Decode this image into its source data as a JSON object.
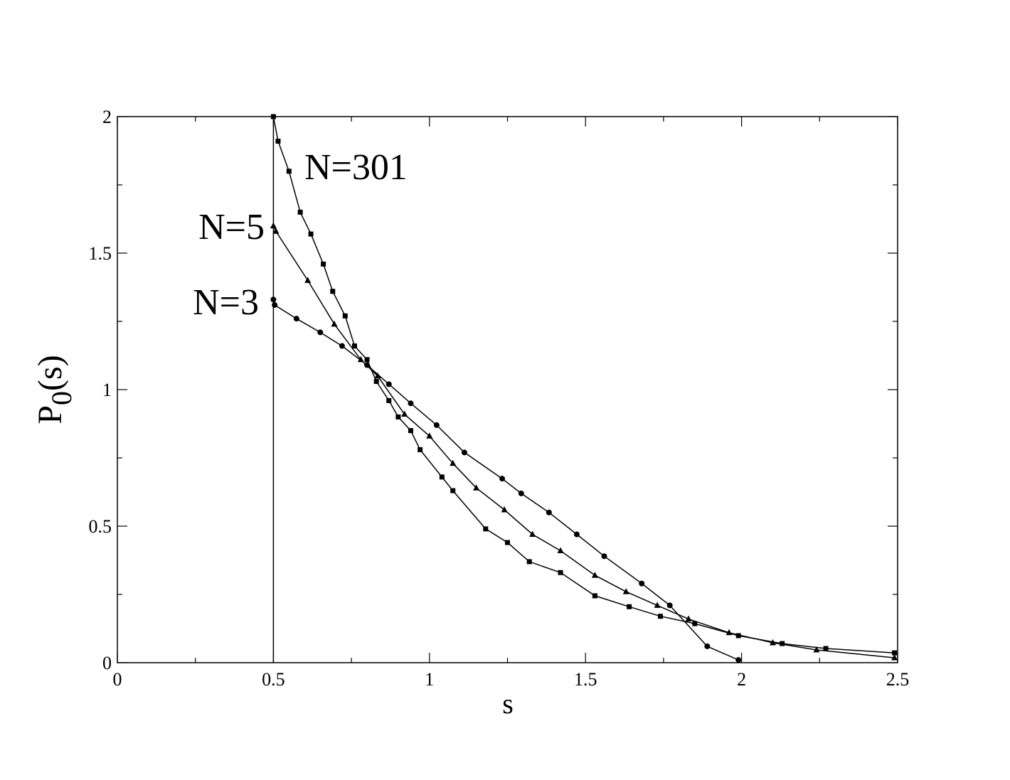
{
  "chart_data": {
    "type": "scatter",
    "xlabel": "s",
    "ylabel": [
      "P",
      "0",
      "(s)"
    ],
    "xlim": [
      0,
      2.5
    ],
    "ylim": [
      0,
      2
    ],
    "xticks": [
      0,
      0.5,
      1,
      1.5,
      2,
      2.5
    ],
    "yticks": [
      0,
      0.5,
      1,
      1.5,
      2
    ],
    "xminor": [
      0.25,
      0.75,
      1.25,
      1.75,
      2.25
    ],
    "yminor": [
      0.25,
      0.75,
      1.25,
      1.75
    ],
    "vline": 0.5,
    "series": [
      {
        "name": "N=301",
        "color": "#000000",
        "marker": "square",
        "x": [
          0.5,
          0.515,
          0.55,
          0.586,
          0.62,
          0.66,
          0.69,
          0.73,
          0.76,
          0.8,
          0.83,
          0.87,
          0.9,
          0.94,
          0.97,
          1.04,
          1.075,
          1.18,
          1.25,
          1.32,
          1.42,
          1.53,
          1.64,
          1.74,
          1.85,
          1.99,
          2.13,
          2.27,
          2.49
        ],
        "values": [
          2.0,
          1.91,
          1.8,
          1.65,
          1.57,
          1.46,
          1.36,
          1.27,
          1.16,
          1.11,
          1.03,
          0.96,
          0.9,
          0.85,
          0.78,
          0.68,
          0.63,
          0.49,
          0.44,
          0.37,
          0.33,
          0.245,
          0.205,
          0.17,
          0.143,
          0.099,
          0.07,
          0.052,
          0.036
        ]
      },
      {
        "name": "N=5",
        "color": "#000000",
        "marker": "triangle",
        "x": [
          0.5,
          0.508,
          0.61,
          0.695,
          0.78,
          0.834,
          0.92,
          1.0,
          1.075,
          1.15,
          1.24,
          1.33,
          1.42,
          1.53,
          1.63,
          1.73,
          1.83,
          1.96,
          2.1,
          2.24,
          2.49
        ],
        "values": [
          1.6,
          1.58,
          1.4,
          1.24,
          1.11,
          1.05,
          0.91,
          0.83,
          0.73,
          0.64,
          0.56,
          0.47,
          0.41,
          0.32,
          0.26,
          0.21,
          0.16,
          0.11,
          0.073,
          0.047,
          0.018
        ]
      },
      {
        "name": "N=3",
        "color": "#000000",
        "marker": "circle",
        "x": [
          0.5,
          0.504,
          0.574,
          0.65,
          0.72,
          0.8,
          0.87,
          0.94,
          1.023,
          1.112,
          1.233,
          1.294,
          1.383,
          1.472,
          1.56,
          1.68,
          1.77,
          1.89,
          1.99
        ],
        "values": [
          1.33,
          1.31,
          1.26,
          1.21,
          1.16,
          1.09,
          1.02,
          0.95,
          0.87,
          0.77,
          0.674,
          0.62,
          0.55,
          0.47,
          0.39,
          0.29,
          0.21,
          0.06,
          0.01
        ]
      }
    ]
  }
}
